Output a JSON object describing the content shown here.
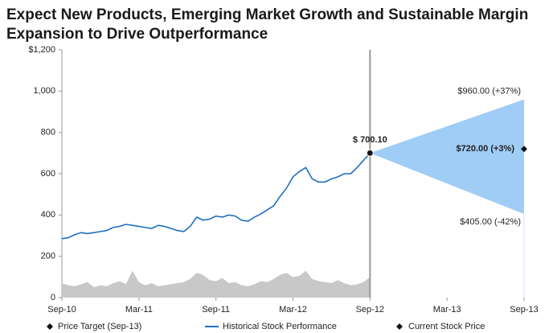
{
  "chart_data": {
    "type": "line",
    "title": [
      "Expect New Products, Emerging Market Growth and Sustainable Margin",
      "Expansion to Drive Outperformance"
    ],
    "xlim": [
      2010.667,
      2013.667
    ],
    "xticks": [
      {
        "value": 2010.667,
        "label": "Sep-10"
      },
      {
        "value": 2011.167,
        "label": "Mar-11"
      },
      {
        "value": 2011.667,
        "label": "Sep-11"
      },
      {
        "value": 2012.167,
        "label": "Mar-12"
      },
      {
        "value": 2012.667,
        "label": "Sep-12"
      },
      {
        "value": 2013.167,
        "label": "Mar-13"
      },
      {
        "value": 2013.667,
        "label": "Sep-13"
      }
    ],
    "ylim": [
      0,
      1200
    ],
    "yticks": [
      0,
      200,
      400,
      600,
      800,
      {
        "value": 1000,
        "label": "1,000"
      },
      {
        "value": 1200,
        "label": "$1,200"
      }
    ],
    "series": [
      {
        "name": "Historical Stock Performance",
        "color": "#1f6fc0",
        "x": [
          2010.667,
          2010.708,
          2010.75,
          2010.792,
          2010.833,
          2010.875,
          2010.917,
          2010.958,
          2011.0,
          2011.042,
          2011.083,
          2011.125,
          2011.167,
          2011.208,
          2011.25,
          2011.292,
          2011.333,
          2011.375,
          2011.417,
          2011.458,
          2011.5,
          2011.542,
          2011.583,
          2011.625,
          2011.667,
          2011.708,
          2011.75,
          2011.792,
          2011.833,
          2011.875,
          2011.917,
          2011.958,
          2012.0,
          2012.042,
          2012.083,
          2012.125,
          2012.167,
          2012.208,
          2012.25,
          2012.292,
          2012.333,
          2012.375,
          2012.417,
          2012.458,
          2012.5,
          2012.542,
          2012.583,
          2012.625,
          2012.667
        ],
        "values": [
          285,
          290,
          305,
          315,
          310,
          315,
          320,
          325,
          340,
          345,
          355,
          350,
          345,
          340,
          335,
          350,
          345,
          335,
          325,
          320,
          345,
          390,
          375,
          380,
          395,
          390,
          400,
          395,
          375,
          370,
          390,
          405,
          425,
          445,
          490,
          530,
          585,
          610,
          630,
          575,
          560,
          560,
          575,
          585,
          600,
          600,
          630,
          665,
          700.1
        ]
      }
    ],
    "volume": {
      "color": "#c8c8c8",
      "values": [
        70,
        60,
        55,
        65,
        75,
        50,
        60,
        55,
        70,
        80,
        65,
        130,
        75,
        60,
        70,
        55,
        60,
        65,
        70,
        75,
        90,
        120,
        110,
        85,
        80,
        95,
        70,
        75,
        60,
        55,
        65,
        80,
        75,
        90,
        110,
        120,
        100,
        105,
        130,
        90,
        80,
        75,
        70,
        85,
        70,
        60,
        65,
        75,
        100
      ]
    },
    "range": {
      "color": "#9fcdf6",
      "x": [
        2012.667,
        2013.667
      ],
      "high": [
        700.1,
        960
      ],
      "low": [
        700.1,
        405
      ],
      "high_label": "$960.00 (+37%)",
      "low_label": "$405.00 (-42%)"
    },
    "markers": [
      {
        "name": "Price Target (Sep-13)",
        "shape": "diamond",
        "x": 2013.667,
        "value": 720,
        "value_label": "$720.00 (+3%)"
      },
      {
        "name": "Current Stock Price",
        "shape": "circle",
        "x": 2012.667,
        "value": 700.1,
        "value_label": "$ 700.10"
      }
    ]
  }
}
